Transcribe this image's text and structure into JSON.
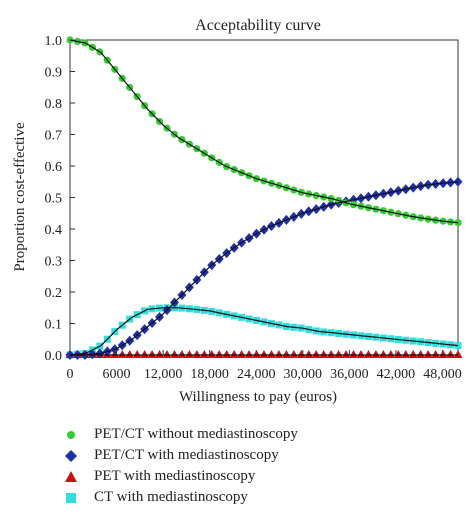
{
  "chart_data": {
    "type": "line",
    "title": "Acceptability curve",
    "xlabel": "Willingness to pay (euros)",
    "ylabel": "Proportion cost-effective",
    "xlim": [
      0,
      50000
    ],
    "ylim": [
      0,
      1
    ],
    "x_ticks": [
      "0",
      "6000",
      "12,000",
      "18,000",
      "24,000",
      "30,000",
      "36,000",
      "42,000",
      "48,000"
    ],
    "y_ticks": [
      "0.0",
      "0.1",
      "0.2",
      "0.3",
      "0.4",
      "0.5",
      "0.6",
      "0.7",
      "0.8",
      "0.9",
      "1.0"
    ],
    "grid": false,
    "legend_position": "bottom",
    "x": [
      0,
      2000,
      4000,
      6000,
      8000,
      10000,
      12000,
      14000,
      16000,
      18000,
      20000,
      22000,
      24000,
      26000,
      28000,
      30000,
      32000,
      34000,
      36000,
      38000,
      40000,
      42000,
      44000,
      46000,
      48000,
      50000
    ],
    "series": [
      {
        "name": "PET/CT without mediastinoscopy",
        "color": "#33cc33",
        "marker": "circle",
        "values": [
          1.0,
          0.99,
          0.96,
          0.9,
          0.84,
          0.78,
          0.73,
          0.69,
          0.66,
          0.63,
          0.6,
          0.58,
          0.56,
          0.545,
          0.53,
          0.515,
          0.505,
          0.495,
          0.48,
          0.47,
          0.46,
          0.45,
          0.44,
          0.432,
          0.425,
          0.42
        ]
      },
      {
        "name": "PET/CT with mediastinoscopy",
        "color": "#1f2fa8",
        "marker": "diamond",
        "values": [
          0.0,
          0.0,
          0.005,
          0.02,
          0.05,
          0.09,
          0.13,
          0.18,
          0.23,
          0.28,
          0.32,
          0.355,
          0.385,
          0.41,
          0.43,
          0.45,
          0.465,
          0.48,
          0.49,
          0.5,
          0.51,
          0.52,
          0.53,
          0.54,
          0.545,
          0.55
        ]
      },
      {
        "name": "PET with mediastinoscopy",
        "color": "#cc1111",
        "marker": "triangle",
        "values": [
          0.0,
          0.0,
          0.0,
          0.0,
          0.0,
          0.0,
          0.0,
          0.0,
          0.0,
          0.0,
          0.0,
          0.0,
          0.0,
          0.0,
          0.0,
          0.0,
          0.0,
          0.0,
          0.0,
          0.0,
          0.0,
          0.0,
          0.0,
          0.0,
          0.0,
          0.0
        ]
      },
      {
        "name": "CT with mediastinoscopy",
        "color": "#33dddd",
        "marker": "square",
        "values": [
          0.0,
          0.005,
          0.03,
          0.08,
          0.12,
          0.145,
          0.15,
          0.15,
          0.145,
          0.14,
          0.13,
          0.12,
          0.11,
          0.1,
          0.09,
          0.085,
          0.075,
          0.07,
          0.065,
          0.06,
          0.055,
          0.05,
          0.045,
          0.04,
          0.035,
          0.03
        ]
      }
    ]
  }
}
